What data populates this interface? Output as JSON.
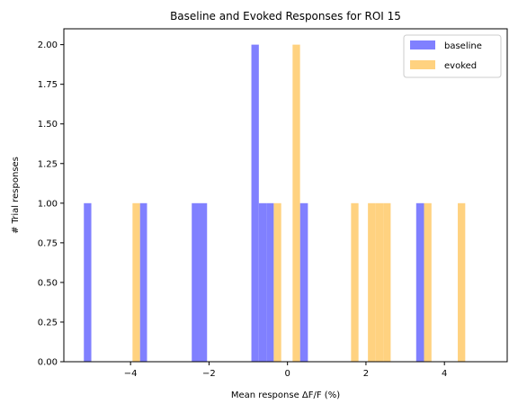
{
  "chart_data": {
    "type": "bar",
    "title": "Baseline and Evoked Responses for ROI 15",
    "xlabel": "Mean response ΔF/F (%)",
    "ylabel": "# Trial responses",
    "xlim": [
      -5.7,
      5.6
    ],
    "ylim": [
      0,
      2.1
    ],
    "x_ticks": [
      -4,
      -2,
      0,
      2,
      4
    ],
    "x_tick_labels": [
      "−4",
      "−2",
      "0",
      "2",
      "4"
    ],
    "y_ticks": [
      0,
      0.25,
      0.5,
      0.75,
      1.0,
      1.25,
      1.5,
      1.75,
      2.0
    ],
    "y_tick_labels": [
      "0.00",
      "0.25",
      "0.50",
      "0.75",
      "1.00",
      "1.25",
      "1.50",
      "1.75",
      "2.00"
    ],
    "legend_position": "top-right",
    "series": [
      {
        "name": "baseline",
        "color": "#8080ff",
        "bins": [
          {
            "x0": -5.19,
            "x1": -5.0,
            "count": 1
          },
          {
            "x0": -3.76,
            "x1": -3.58,
            "count": 1
          },
          {
            "x0": -2.44,
            "x1": -2.25,
            "count": 1
          },
          {
            "x0": -2.25,
            "x1": -2.05,
            "count": 1
          },
          {
            "x0": -0.92,
            "x1": -0.73,
            "count": 2
          },
          {
            "x0": -0.73,
            "x1": -0.54,
            "count": 1
          },
          {
            "x0": -0.54,
            "x1": -0.35,
            "count": 1
          },
          {
            "x0": 0.32,
            "x1": 0.52,
            "count": 1
          },
          {
            "x0": 3.28,
            "x1": 3.48,
            "count": 1
          }
        ]
      },
      {
        "name": "evoked",
        "color": "#ffd280",
        "bins": [
          {
            "x0": -3.95,
            "x1": -3.76,
            "count": 1
          },
          {
            "x0": -0.35,
            "x1": -0.16,
            "count": 1
          },
          {
            "x0": 0.13,
            "x1": 0.32,
            "count": 2
          },
          {
            "x0": 1.62,
            "x1": 1.81,
            "count": 1
          },
          {
            "x0": 2.05,
            "x1": 2.25,
            "count": 1
          },
          {
            "x0": 2.25,
            "x1": 2.44,
            "count": 1
          },
          {
            "x0": 2.44,
            "x1": 2.63,
            "count": 1
          },
          {
            "x0": 3.48,
            "x1": 3.67,
            "count": 1
          },
          {
            "x0": 4.34,
            "x1": 4.53,
            "count": 1
          }
        ]
      }
    ]
  }
}
